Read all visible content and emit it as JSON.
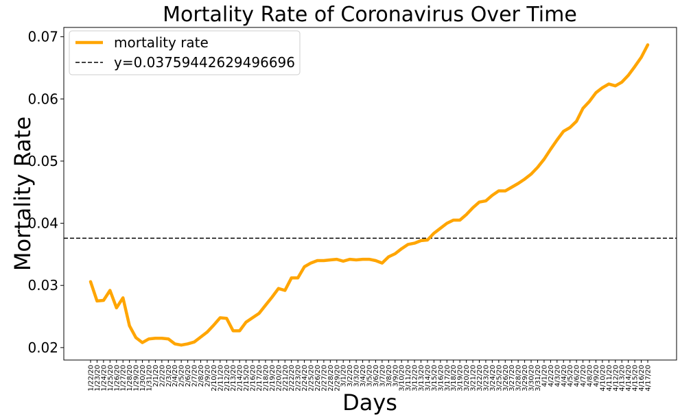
{
  "chart_data": {
    "type": "line",
    "title": "Mortality Rate of Coronavirus Over Time",
    "xlabel": "Days",
    "ylabel": "Mortality Rate",
    "ylim": [
      0.018,
      0.0715
    ],
    "yticks": [
      0.02,
      0.03,
      0.04,
      0.05,
      0.06,
      0.07
    ],
    "ytick_labels": [
      "0.02",
      "0.03",
      "0.04",
      "0.05",
      "0.06",
      "0.07"
    ],
    "grid": false,
    "legend_position": "top-left",
    "categories": [
      "1/22/20",
      "1/23/20",
      "1/24/20",
      "1/25/20",
      "1/26/20",
      "1/27/20",
      "1/28/20",
      "1/29/20",
      "1/30/20",
      "1/31/20",
      "2/1/20",
      "2/2/20",
      "2/3/20",
      "2/4/20",
      "2/5/20",
      "2/6/20",
      "2/7/20",
      "2/8/20",
      "2/9/20",
      "2/10/20",
      "2/11/20",
      "2/12/20",
      "2/13/20",
      "2/14/20",
      "2/15/20",
      "2/16/20",
      "2/17/20",
      "2/18/20",
      "2/19/20",
      "2/20/20",
      "2/21/20",
      "2/22/20",
      "2/23/20",
      "2/24/20",
      "2/25/20",
      "2/26/20",
      "2/27/20",
      "2/28/20",
      "2/29/20",
      "3/1/20",
      "3/2/20",
      "3/3/20",
      "3/4/20",
      "3/5/20",
      "3/6/20",
      "3/7/20",
      "3/8/20",
      "3/9/20",
      "3/10/20",
      "3/11/20",
      "3/12/20",
      "3/13/20",
      "3/14/20",
      "3/15/20",
      "3/16/20",
      "3/17/20",
      "3/18/20",
      "3/19/20",
      "3/20/20",
      "3/21/20",
      "3/22/20",
      "3/23/20",
      "3/24/20",
      "3/25/20",
      "3/26/20",
      "3/27/20",
      "3/28/20",
      "3/29/20",
      "3/30/20",
      "3/31/20",
      "4/1/20",
      "4/2/20",
      "4/3/20",
      "4/4/20",
      "4/5/20",
      "4/6/20",
      "4/7/20",
      "4/8/20",
      "4/9/20",
      "4/10/20",
      "4/11/20",
      "4/12/20",
      "4/13/20",
      "4/14/20",
      "4/15/20",
      "4/16/20",
      "4/17/20"
    ],
    "series": [
      {
        "name": "mortality rate",
        "color": "#ffa500",
        "values": [
          0.0306,
          0.0275,
          0.0276,
          0.0292,
          0.0264,
          0.028,
          0.0235,
          0.0216,
          0.0208,
          0.0214,
          0.0215,
          0.0215,
          0.0214,
          0.0206,
          0.0204,
          0.0206,
          0.0209,
          0.0217,
          0.0225,
          0.0236,
          0.0248,
          0.0247,
          0.0227,
          0.0227,
          0.0241,
          0.0248,
          0.0255,
          0.0268,
          0.0281,
          0.0295,
          0.0292,
          0.0312,
          0.0312,
          0.033,
          0.0336,
          0.034,
          0.034,
          0.0341,
          0.0342,
          0.0339,
          0.0342,
          0.0341,
          0.0342,
          0.0342,
          0.034,
          0.0336,
          0.0346,
          0.0351,
          0.0359,
          0.0366,
          0.0368,
          0.0372,
          0.0373,
          0.0384,
          0.0392,
          0.04,
          0.0405,
          0.0405,
          0.0414,
          0.0425,
          0.0434,
          0.0436,
          0.0445,
          0.0452,
          0.0452,
          0.0458,
          0.0464,
          0.0471,
          0.0479,
          0.049,
          0.0503,
          0.0519,
          0.0534,
          0.0548,
          0.0554,
          0.0564,
          0.0585,
          0.0596,
          0.061,
          0.0618,
          0.0624,
          0.0621,
          0.0627,
          0.0638,
          0.0652,
          0.0667,
          0.0687
        ]
      }
    ],
    "reference_line": {
      "label": "y=0.03759442629496696",
      "y": 0.03759442629496696,
      "color": "#000000",
      "style": "dashed"
    }
  }
}
